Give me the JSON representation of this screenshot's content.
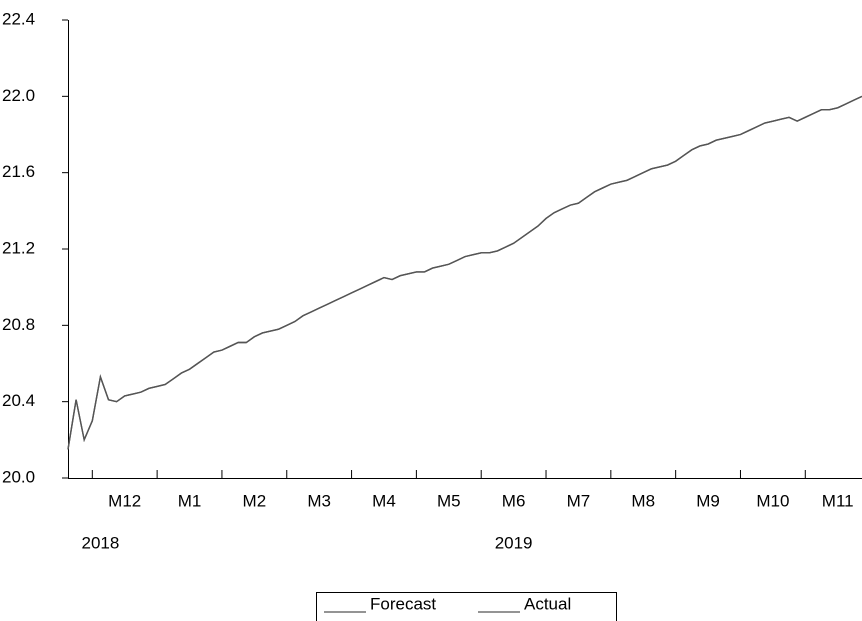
{
  "chart_data": {
    "type": "line",
    "categories": [
      null,
      null,
      null,
      null,
      null,
      null,
      null,
      "M12",
      null,
      null,
      null,
      null,
      null,
      null,
      null,
      "M1",
      null,
      null,
      null,
      null,
      null,
      null,
      null,
      "M2",
      null,
      null,
      null,
      null,
      null,
      null,
      null,
      "M3",
      null,
      null,
      null,
      null,
      null,
      null,
      null,
      "M4",
      null,
      null,
      null,
      null,
      null,
      null,
      null,
      "M5",
      null,
      null,
      null,
      null,
      null,
      null,
      null,
      "M6",
      null,
      null,
      null,
      null,
      null,
      null,
      null,
      "M7",
      null,
      null,
      null,
      null,
      null,
      null,
      null,
      "M8",
      null,
      null,
      null,
      null,
      null,
      null,
      null,
      "M9",
      null,
      null,
      null,
      null,
      null,
      null,
      null,
      "M10",
      null,
      null,
      null,
      null,
      null,
      null,
      null,
      "M11",
      null,
      null,
      null
    ],
    "year_labels": [
      null,
      null,
      null,
      null,
      "2018",
      null,
      null,
      null,
      null,
      null,
      null,
      null,
      null,
      null,
      null,
      null,
      null,
      null,
      null,
      null,
      null,
      null,
      null,
      null,
      null,
      null,
      null,
      null,
      null,
      null,
      null,
      null,
      null,
      null,
      null,
      null,
      null,
      null,
      null,
      null,
      null,
      null,
      null,
      null,
      null,
      null,
      null,
      null,
      null,
      null,
      null,
      null,
      null,
      null,
      null,
      "2019",
      null,
      null,
      null,
      null,
      null,
      null,
      null,
      null,
      null,
      null,
      null,
      null,
      null,
      null,
      null,
      null,
      null,
      null,
      null,
      null,
      null,
      null,
      null,
      null,
      null,
      null,
      null,
      null,
      null,
      null,
      null,
      null,
      null,
      null,
      null,
      null,
      null,
      null,
      null,
      null,
      null,
      null,
      null
    ],
    "series": [
      {
        "name": "Forecast",
        "color": "#555555",
        "values": [
          20.15,
          20.41,
          20.2,
          20.3,
          20.53,
          20.41,
          20.4,
          20.43,
          20.44,
          20.45,
          20.47,
          20.48,
          20.49,
          20.52,
          20.55,
          20.57,
          20.6,
          20.63,
          20.66,
          20.67,
          20.69,
          20.71,
          20.71,
          20.74,
          20.76,
          20.77,
          20.78,
          20.8,
          20.82,
          20.85,
          20.87,
          20.89,
          20.91,
          20.93,
          20.95,
          20.97,
          20.99,
          21.01,
          21.03,
          21.05,
          21.04,
          21.06,
          21.07,
          21.08,
          21.08,
          21.1,
          21.11,
          21.12,
          21.14,
          21.16,
          21.17,
          21.18,
          21.18,
          21.19,
          21.21,
          21.23,
          21.26,
          21.29,
          21.32,
          21.36,
          21.39,
          21.41,
          21.43,
          21.44,
          21.47,
          21.5,
          21.52,
          21.54,
          21.55,
          21.56,
          21.58,
          21.6,
          21.62,
          21.63,
          21.64,
          21.66,
          21.69,
          21.72,
          21.74,
          21.75,
          21.77,
          21.78,
          21.79,
          21.8,
          21.82,
          21.84,
          21.86,
          21.87,
          21.88,
          21.89,
          21.87,
          21.89,
          21.91,
          21.93,
          21.93,
          21.94,
          21.96,
          21.98,
          22.0
        ]
      },
      {
        "name": "Actual",
        "color": "#555555",
        "values": [
          20.15,
          20.41,
          20.2,
          20.3,
          20.53,
          20.41,
          20.4,
          20.43,
          20.44,
          20.45,
          20.47,
          20.48,
          20.49,
          20.52,
          20.55,
          20.57,
          20.6,
          20.63,
          20.66,
          20.67,
          20.69,
          20.71,
          20.71,
          20.74,
          20.76,
          20.77,
          20.78,
          20.8,
          20.82,
          20.85,
          20.87,
          20.89,
          20.91,
          20.93,
          20.95,
          20.97,
          20.99,
          21.01,
          21.03,
          21.05,
          21.04,
          21.06,
          21.07,
          21.08,
          21.08,
          21.1,
          21.11,
          21.12,
          21.14,
          21.16,
          21.17,
          21.18,
          21.18,
          21.19,
          21.21,
          21.23,
          21.26,
          21.29,
          21.32,
          21.36,
          21.39,
          21.41,
          21.43,
          21.44,
          21.47,
          21.5,
          21.52,
          21.54,
          21.55,
          21.56,
          21.58,
          21.6,
          21.62,
          21.63,
          21.64,
          21.66,
          21.69,
          21.72,
          21.74,
          21.75,
          21.77,
          21.78,
          21.79,
          21.8,
          21.82,
          21.84,
          21.86,
          21.87,
          21.88,
          21.89,
          21.87,
          21.89,
          21.91,
          21.93,
          21.93,
          21.94,
          21.96,
          21.98,
          22.0
        ]
      }
    ],
    "ylim": [
      20.0,
      22.4
    ],
    "yticks": [
      {
        "value": 20.0,
        "label": "20.0"
      },
      {
        "value": 20.4,
        "label": "20.4"
      },
      {
        "value": 20.8,
        "label": "20.8"
      },
      {
        "value": 21.2,
        "label": "21.2"
      },
      {
        "value": 21.6,
        "label": "21.6"
      },
      {
        "value": 22.0,
        "label": "22.0"
      },
      {
        "value": 22.4,
        "label": "22.4"
      }
    ],
    "grid": false
  }
}
